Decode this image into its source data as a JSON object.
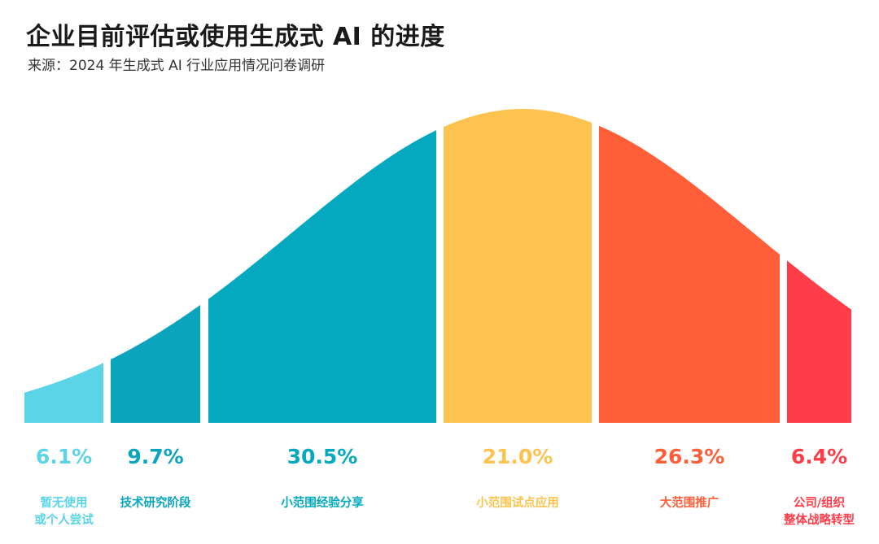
{
  "title": "企业目前评估或使用生成式 AI 的进度",
  "subtitle": "来源：2024 年生成式 AI 行业应用情况问卷调研",
  "chart_data": {
    "type": "bar",
    "categories": [
      [
        "暂无使用",
        "或个人尝试"
      ],
      [
        "技术研究阶段"
      ],
      [
        "小范围经验分享"
      ],
      [
        "小范围试点应用"
      ],
      [
        "大范围推广"
      ],
      [
        "公司/组织",
        "整体战略转型"
      ]
    ],
    "values": [
      6.1,
      9.7,
      30.5,
      21.0,
      26.3,
      6.4
    ],
    "value_labels": [
      "6.1%",
      "9.7%",
      "30.5%",
      "21.0%",
      "26.3%",
      "6.4%"
    ],
    "colors": [
      "#5ad4e6",
      "#0aa5bd",
      "#04a9bf",
      "#fec24e",
      "#ff5e38",
      "#ff3d48"
    ],
    "shape": "bell-curve segments"
  }
}
